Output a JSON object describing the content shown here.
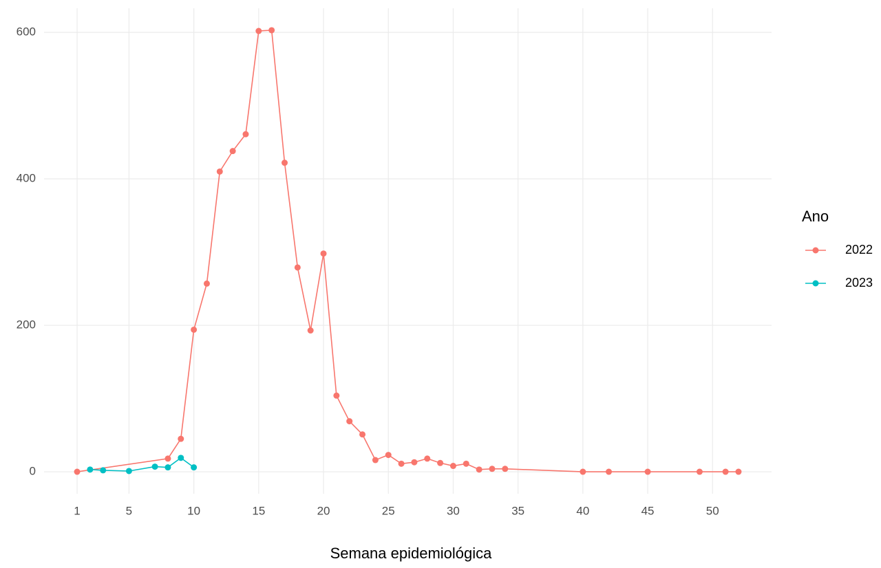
{
  "chart_data": {
    "type": "line",
    "x_label": "Semana epidemiológica",
    "legend_title": "Ano",
    "xlim": [
      -1.55,
      54.55
    ],
    "xticks": [
      1,
      5,
      10,
      15,
      20,
      25,
      30,
      35,
      40,
      45,
      50
    ],
    "ylim": [
      -30,
      633
    ],
    "yticks": [
      0,
      200,
      400,
      600
    ],
    "grid": true,
    "legend": "right",
    "series": [
      {
        "name": "2022",
        "color": "#F8766D",
        "x": [
          1,
          8,
          9,
          10,
          11,
          12,
          13,
          14,
          15,
          16,
          17,
          18,
          19,
          20,
          21,
          22,
          23,
          24,
          25,
          26,
          27,
          28,
          29,
          30,
          31,
          32,
          33,
          34,
          40,
          42,
          45,
          49,
          51,
          52
        ],
        "values": [
          0,
          18,
          45,
          194,
          257,
          410,
          438,
          461,
          602,
          603,
          422,
          279,
          193,
          298,
          104,
          69,
          51,
          16,
          23,
          11,
          13,
          18,
          12,
          8,
          11,
          3,
          4,
          4,
          0,
          0,
          0,
          0,
          0,
          0
        ]
      },
      {
        "name": "2023",
        "color": "#00BFC4",
        "x": [
          2,
          3,
          5,
          7,
          8,
          9,
          10
        ],
        "values": [
          3,
          2,
          1,
          7,
          6,
          19,
          6
        ]
      }
    ]
  }
}
